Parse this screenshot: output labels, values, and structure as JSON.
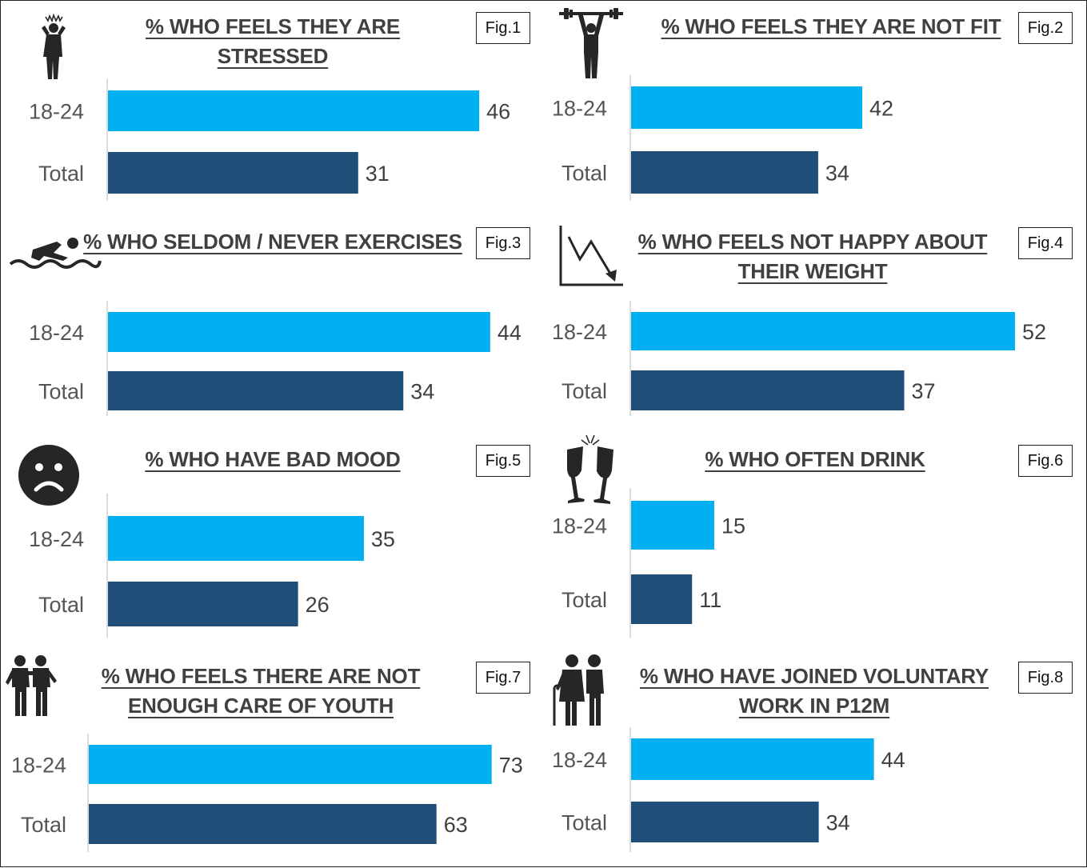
{
  "colors": {
    "series_18_24": "#00b0f0",
    "series_total": "#1f4e79",
    "title": "#404040",
    "icon": "#262626"
  },
  "chart_data": [
    {
      "type": "bar",
      "fig": "Fig.1",
      "title": "% WHO FEELS THEY ARE STRESSED",
      "icon": "stressed-person-icon",
      "categories": [
        "18-24",
        "Total"
      ],
      "values": [
        46,
        31
      ],
      "orientation": "horizontal",
      "xlim": [
        0,
        75
      ]
    },
    {
      "type": "bar",
      "fig": "Fig.2",
      "title": "% WHO FEELS THEY ARE NOT FIT",
      "icon": "weightlifter-icon",
      "categories": [
        "18-24",
        "Total"
      ],
      "values": [
        42,
        34
      ],
      "orientation": "horizontal",
      "xlim": [
        0,
        75
      ]
    },
    {
      "type": "bar",
      "fig": "Fig.3",
      "title": "% WHO SELDOM / NEVER EXERCISES",
      "icon": "swimmer-icon",
      "categories": [
        "18-24",
        "Total"
      ],
      "values": [
        44,
        34
      ],
      "orientation": "horizontal",
      "xlim": [
        0,
        75
      ]
    },
    {
      "type": "bar",
      "fig": "Fig.4",
      "title": "% WHO FEELS NOT HAPPY ABOUT THEIR WEIGHT",
      "icon": "declining-chart-icon",
      "categories": [
        "18-24",
        "Total"
      ],
      "values": [
        52,
        37
      ],
      "orientation": "horizontal",
      "xlim": [
        0,
        75
      ]
    },
    {
      "type": "bar",
      "fig": "Fig.5",
      "title": "% WHO HAVE BAD MOOD",
      "icon": "sad-face-icon",
      "categories": [
        "18-24",
        "Total"
      ],
      "values": [
        35,
        26
      ],
      "orientation": "horizontal",
      "xlim": [
        0,
        75
      ]
    },
    {
      "type": "bar",
      "fig": "Fig.6",
      "title": "% WHO OFTEN DRINK",
      "icon": "champagne-glasses-icon",
      "categories": [
        "18-24",
        "Total"
      ],
      "values": [
        15,
        11
      ],
      "orientation": "horizontal",
      "xlim": [
        0,
        75
      ]
    },
    {
      "type": "bar",
      "fig": "Fig.7",
      "title": "% WHO FEELS THERE ARE NOT ENOUGH CARE OF YOUTH",
      "icon": "two-people-icon",
      "categories": [
        "18-24",
        "Total"
      ],
      "values": [
        73,
        63
      ],
      "orientation": "horizontal",
      "xlim": [
        0,
        75
      ]
    },
    {
      "type": "bar",
      "fig": "Fig.8",
      "title": "% WHO HAVE JOINED VOLUNTARY WORK IN P12M",
      "icon": "elderly-couple-icon",
      "categories": [
        "18-24",
        "Total"
      ],
      "values": [
        44,
        34
      ],
      "orientation": "horizontal",
      "xlim": [
        0,
        75
      ]
    }
  ]
}
